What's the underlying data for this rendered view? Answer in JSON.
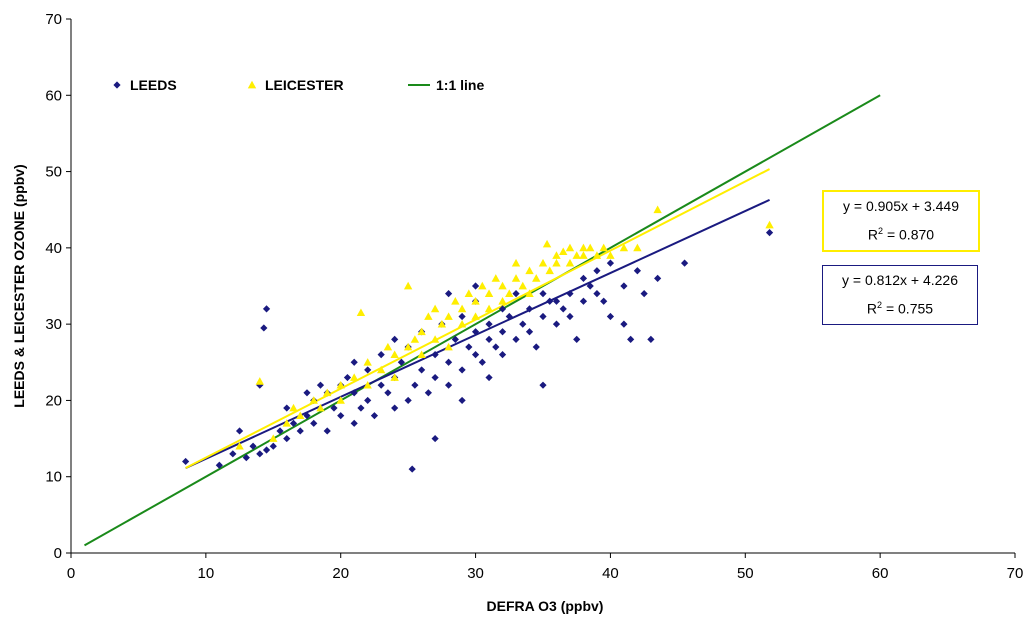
{
  "chart_data": {
    "type": "scatter",
    "xlabel": "DEFRA O3 (ppbv)",
    "ylabel": "LEEDS & LEICESTER OZONE (ppbv)",
    "xlim": [
      0,
      70
    ],
    "ylim": [
      0,
      70
    ],
    "xticks": [
      "0",
      "10",
      "20",
      "30",
      "40",
      "50",
      "60",
      "70"
    ],
    "yticks": [
      "0",
      "10",
      "20",
      "30",
      "40",
      "50",
      "60",
      "70"
    ],
    "grid": false,
    "legend": "top-left",
    "series": [
      {
        "name": "LEEDS",
        "marker": "diamond",
        "color": "#1a1a80",
        "points": [
          [
            8.5,
            12
          ],
          [
            11,
            11.5
          ],
          [
            12,
            13
          ],
          [
            12.5,
            16
          ],
          [
            13,
            12.5
          ],
          [
            13.5,
            14
          ],
          [
            14,
            13
          ],
          [
            14.5,
            13.5
          ],
          [
            14.3,
            29.5
          ],
          [
            14.5,
            32
          ],
          [
            14,
            22
          ],
          [
            15,
            14
          ],
          [
            15.5,
            16
          ],
          [
            16,
            15
          ],
          [
            16.5,
            17
          ],
          [
            16,
            19
          ],
          [
            17,
            16
          ],
          [
            17.5,
            18
          ],
          [
            18,
            17
          ],
          [
            18,
            20
          ],
          [
            18.5,
            22
          ],
          [
            19,
            16
          ],
          [
            19,
            21
          ],
          [
            19.5,
            19
          ],
          [
            20,
            22
          ],
          [
            20,
            18
          ],
          [
            20.5,
            23
          ],
          [
            21,
            21
          ],
          [
            21,
            17
          ],
          [
            21.5,
            19
          ],
          [
            22,
            24
          ],
          [
            22,
            20
          ],
          [
            22.5,
            18
          ],
          [
            23,
            22
          ],
          [
            23,
            26
          ],
          [
            23.5,
            21
          ],
          [
            24,
            19
          ],
          [
            24,
            23
          ],
          [
            24.5,
            25
          ],
          [
            25,
            20
          ],
          [
            25,
            27
          ],
          [
            25.3,
            11
          ],
          [
            25.5,
            22
          ],
          [
            26,
            24
          ],
          [
            26,
            29
          ],
          [
            26.5,
            21
          ],
          [
            27,
            26
          ],
          [
            27,
            23
          ],
          [
            27.5,
            30
          ],
          [
            27,
            15
          ],
          [
            28,
            25
          ],
          [
            28,
            22
          ],
          [
            28.5,
            28
          ],
          [
            29,
            24
          ],
          [
            29,
            31
          ],
          [
            29.5,
            27
          ],
          [
            30,
            26
          ],
          [
            30,
            29
          ],
          [
            30,
            33
          ],
          [
            30.5,
            25
          ],
          [
            31,
            28
          ],
          [
            31,
            30
          ],
          [
            31.5,
            27
          ],
          [
            32,
            29
          ],
          [
            32,
            32
          ],
          [
            32,
            26
          ],
          [
            32.5,
            31
          ],
          [
            33,
            28
          ],
          [
            33,
            34
          ],
          [
            33.5,
            30
          ],
          [
            34,
            29
          ],
          [
            34,
            32
          ],
          [
            34.5,
            27
          ],
          [
            35,
            31
          ],
          [
            35,
            34
          ],
          [
            35,
            22
          ],
          [
            35.5,
            33
          ],
          [
            36,
            30
          ],
          [
            36,
            33
          ],
          [
            36.5,
            32
          ],
          [
            37,
            34
          ],
          [
            37,
            31
          ],
          [
            37.5,
            28
          ],
          [
            38,
            33
          ],
          [
            38,
            36
          ],
          [
            38.5,
            35
          ],
          [
            39,
            34
          ],
          [
            39,
            37
          ],
          [
            39.5,
            33
          ],
          [
            40,
            38
          ],
          [
            40,
            31
          ],
          [
            41,
            35
          ],
          [
            41,
            30
          ],
          [
            41.5,
            28
          ],
          [
            42,
            37
          ],
          [
            42.5,
            34
          ],
          [
            43,
            28
          ],
          [
            43.5,
            36
          ],
          [
            45.5,
            38
          ],
          [
            51.8,
            42
          ],
          [
            28,
            34
          ],
          [
            30,
            35
          ],
          [
            24,
            28
          ],
          [
            21,
            25
          ],
          [
            17.5,
            21
          ],
          [
            29,
            20
          ],
          [
            31,
            23
          ]
        ],
        "trendline": {
          "slope": 0.812,
          "intercept": 4.226,
          "x_range": [
            8.5,
            51.8
          ],
          "color": "#1a1a80"
        }
      },
      {
        "name": "LEICESTER",
        "marker": "triangle",
        "color": "#ffee00",
        "points": [
          [
            12.5,
            14
          ],
          [
            14,
            22.5
          ],
          [
            15,
            15
          ],
          [
            16,
            17
          ],
          [
            16.5,
            19
          ],
          [
            17,
            18
          ],
          [
            18,
            20
          ],
          [
            18.5,
            19
          ],
          [
            19,
            21
          ],
          [
            20,
            22
          ],
          [
            20,
            20
          ],
          [
            21,
            23
          ],
          [
            21.5,
            31.5
          ],
          [
            22,
            25
          ],
          [
            22,
            22
          ],
          [
            23,
            24
          ],
          [
            23.5,
            27
          ],
          [
            24,
            26
          ],
          [
            24,
            23
          ],
          [
            25,
            27
          ],
          [
            25,
            35
          ],
          [
            25.5,
            28
          ],
          [
            26,
            29
          ],
          [
            26,
            26
          ],
          [
            26.5,
            31
          ],
          [
            27,
            28
          ],
          [
            27,
            32
          ],
          [
            27.5,
            30
          ],
          [
            28,
            31
          ],
          [
            28,
            27
          ],
          [
            28.5,
            33
          ],
          [
            29,
            30
          ],
          [
            29,
            32
          ],
          [
            29.5,
            34
          ],
          [
            30,
            31
          ],
          [
            30,
            33
          ],
          [
            30.5,
            35
          ],
          [
            31,
            32
          ],
          [
            31,
            34
          ],
          [
            31.5,
            36
          ],
          [
            32,
            33
          ],
          [
            32,
            35
          ],
          [
            32.5,
            34
          ],
          [
            33,
            36
          ],
          [
            33,
            38
          ],
          [
            33.5,
            35
          ],
          [
            34,
            37
          ],
          [
            34,
            34
          ],
          [
            34.5,
            36
          ],
          [
            35,
            38
          ],
          [
            35.3,
            40.5
          ],
          [
            35.5,
            37
          ],
          [
            36,
            38
          ],
          [
            36,
            39
          ],
          [
            36.5,
            39.5
          ],
          [
            37,
            38
          ],
          [
            37,
            40
          ],
          [
            37.5,
            39
          ],
          [
            38,
            40
          ],
          [
            38,
            39
          ],
          [
            38.5,
            40
          ],
          [
            39,
            39
          ],
          [
            39.5,
            40
          ],
          [
            40,
            39
          ],
          [
            41,
            40
          ],
          [
            42,
            40
          ],
          [
            43.5,
            45
          ],
          [
            51.8,
            43
          ]
        ],
        "trendline": {
          "slope": 0.905,
          "intercept": 3.449,
          "x_range": [
            8.5,
            51.8
          ],
          "color": "#ffee00"
        }
      },
      {
        "name": "1:1 line",
        "type": "line",
        "color": "#1a8a1a",
        "points": [
          [
            1,
            1
          ],
          [
            60,
            60
          ]
        ]
      }
    ],
    "annotations": {
      "leicester_eq": {
        "line1": "y = 0.905x + 3.449",
        "r2_label": "R",
        "r2_exp": "2",
        "r2_value": " = 0.870",
        "border": "#ffee00"
      },
      "leeds_eq": {
        "line1": "y = 0.812x + 4.226",
        "r2_label": "R",
        "r2_exp": "2",
        "r2_value": " = 0.755",
        "border": "#1a1a80"
      }
    }
  }
}
